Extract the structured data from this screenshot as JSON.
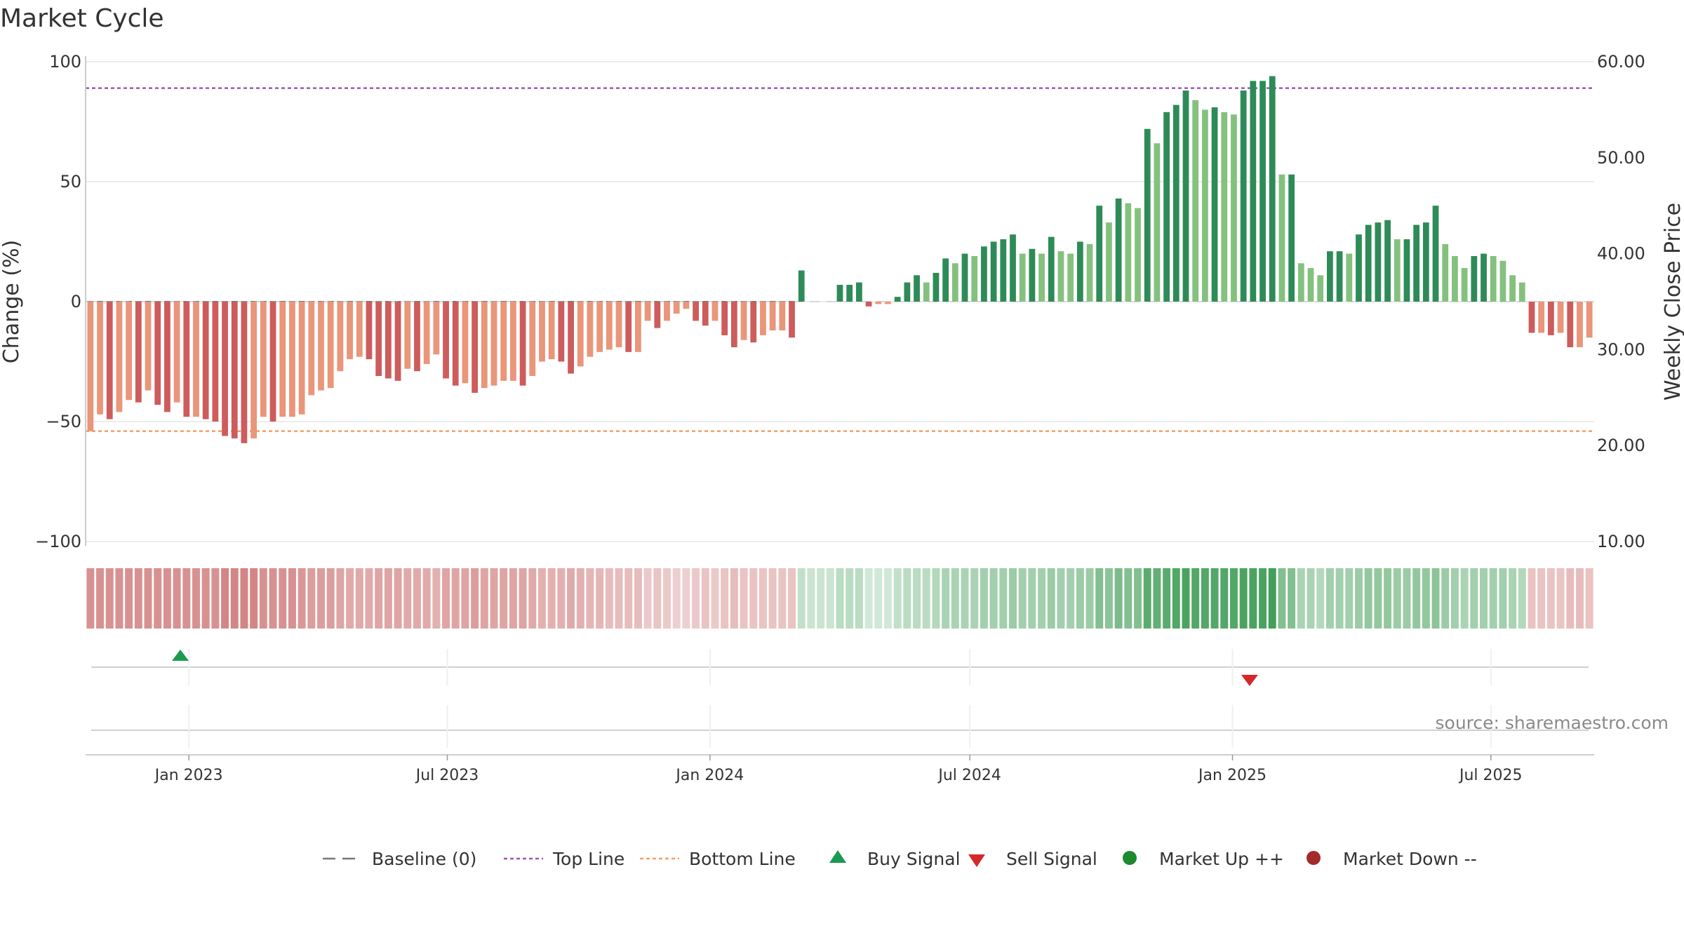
{
  "chart_data": {
    "type": "bar",
    "title": "Market Cycle",
    "ylabel": "Change (%)",
    "y2label": "Weekly Close Price",
    "ylim": [
      -100,
      100
    ],
    "y2lim": [
      10,
      60
    ],
    "yticks": [
      100,
      50,
      0,
      -50,
      -100
    ],
    "yticklabels": [
      "100",
      "50",
      "0",
      "−50",
      "−100"
    ],
    "y2ticks": [
      60,
      50,
      40,
      30,
      20,
      10
    ],
    "y2ticklabels": [
      "60.00",
      "50.00",
      "40.00",
      "30.00",
      "20.00",
      "10.00"
    ],
    "x_start": "2022-10-24",
    "x_end": "2025-09-08",
    "xticks": [
      "2023-01-01",
      "2023-07-01",
      "2024-01-01",
      "2024-07-01",
      "2025-01-01",
      "2025-07-01"
    ],
    "xticklabels": [
      "Jan 2023",
      "Jul 2023",
      "Jan 2024",
      "Jul 2024",
      "Jan 2025",
      "Jul 2025"
    ],
    "top_line": 89,
    "bottom_line": -54,
    "baseline": 0,
    "grid": true,
    "values": [
      -54,
      -47,
      -49,
      -46,
      -41,
      -42,
      -37,
      -43,
      -46,
      -42,
      -48,
      -48,
      -49,
      -50,
      -56,
      -57,
      -59,
      -57,
      -48,
      -50,
      -48,
      -48,
      -47,
      -39,
      -37,
      -36,
      -29,
      -24,
      -23,
      -24,
      -31,
      -32,
      -33,
      -28,
      -29,
      -26,
      -22,
      -32,
      -35,
      -34,
      -38,
      -36,
      -35,
      -33,
      -33,
      -35,
      -31,
      -25,
      -24,
      -25,
      -30,
      -27,
      -23,
      -21,
      -20,
      -19,
      -21,
      -21,
      -8,
      -11,
      -8,
      -5,
      -3,
      -8,
      -10,
      -8,
      -14,
      -19,
      -16,
      -17,
      -14,
      -12,
      -12,
      -15,
      13,
      0,
      0,
      0,
      7,
      7,
      8,
      -2,
      -1,
      -1,
      2,
      8,
      11,
      8,
      12,
      18,
      16,
      20,
      19,
      23,
      25,
      26,
      28,
      20,
      22,
      20,
      27,
      21,
      20,
      25,
      24,
      40,
      33,
      43,
      41,
      39,
      72,
      66,
      79,
      82,
      88,
      84,
      80,
      81,
      79,
      78,
      88,
      92,
      92,
      94,
      53,
      53,
      16,
      14,
      11,
      21,
      21,
      20,
      28,
      32,
      33,
      34,
      26,
      26,
      32,
      33,
      40,
      24,
      19,
      14,
      19,
      20,
      19,
      17,
      11,
      8,
      -13,
      -13,
      -14,
      -13,
      -19,
      -19,
      -15
    ],
    "price_weeks_start": 74,
    "price_weeks_end": 156,
    "heat_values": [
      -0.7,
      -0.7,
      -0.7,
      -0.7,
      -0.7,
      -0.7,
      -0.7,
      -0.7,
      -0.7,
      -0.7,
      -0.7,
      -0.7,
      -0.7,
      -0.7,
      -0.8,
      -0.8,
      -0.8,
      -0.8,
      -0.7,
      -0.7,
      -0.7,
      -0.7,
      -0.65,
      -0.6,
      -0.6,
      -0.6,
      -0.55,
      -0.5,
      -0.5,
      -0.5,
      -0.55,
      -0.55,
      -0.55,
      -0.5,
      -0.5,
      -0.5,
      -0.45,
      -0.55,
      -0.55,
      -0.55,
      -0.6,
      -0.55,
      -0.55,
      -0.55,
      -0.55,
      -0.55,
      -0.5,
      -0.45,
      -0.45,
      -0.45,
      -0.5,
      -0.45,
      -0.4,
      -0.4,
      -0.35,
      -0.35,
      -0.35,
      -0.35,
      -0.25,
      -0.3,
      -0.25,
      -0.2,
      -0.2,
      -0.25,
      -0.3,
      -0.25,
      -0.3,
      -0.35,
      -0.3,
      -0.3,
      -0.3,
      -0.3,
      -0.3,
      -0.3,
      0.2,
      0.15,
      0.15,
      0.15,
      0.25,
      0.25,
      0.25,
      0.1,
      0.1,
      0.1,
      0.2,
      0.25,
      0.25,
      0.25,
      0.3,
      0.35,
      0.35,
      0.35,
      0.35,
      0.4,
      0.4,
      0.4,
      0.45,
      0.4,
      0.4,
      0.4,
      0.45,
      0.4,
      0.4,
      0.45,
      0.45,
      0.6,
      0.55,
      0.65,
      0.6,
      0.6,
      0.85,
      0.8,
      0.85,
      0.9,
      0.95,
      0.9,
      0.9,
      0.9,
      0.9,
      0.9,
      0.95,
      0.95,
      0.95,
      1.0,
      0.6,
      0.6,
      0.35,
      0.35,
      0.3,
      0.4,
      0.4,
      0.4,
      0.45,
      0.5,
      0.5,
      0.5,
      0.45,
      0.45,
      0.5,
      0.5,
      0.55,
      0.45,
      0.4,
      0.35,
      0.4,
      0.4,
      0.4,
      0.4,
      0.35,
      0.3,
      -0.3,
      -0.3,
      -0.3,
      -0.3,
      -0.35,
      -0.35,
      -0.3
    ],
    "signals": [
      {
        "type": "buy",
        "date": "2022-12-26",
        "label": "Buy Signal"
      },
      {
        "type": "sell",
        "date": "2025-01-13",
        "label": "Sell Signal"
      }
    ],
    "legend_position": "bottom-center",
    "source": "source: sharemaestro.com",
    "legend": [
      {
        "label": "Baseline (0)",
        "kind": "dash-wide",
        "color": "#777777"
      },
      {
        "label": "Top Line",
        "kind": "dash-fine",
        "color": "#9b59b6"
      },
      {
        "label": "Bottom Line",
        "kind": "dash-fine",
        "color": "#f0a06a"
      },
      {
        "label": "Buy Signal",
        "kind": "triangle-up",
        "color": "#1a9a50"
      },
      {
        "label": "Sell Signal",
        "kind": "triangle-down",
        "color": "#d62728"
      },
      {
        "label": "Market Up ++",
        "kind": "circle",
        "color": "#1e8a2e"
      },
      {
        "label": "Market Down --",
        "kind": "circle",
        "color": "#a32a2a"
      }
    ],
    "colors": {
      "up_dark": "#2e8b57",
      "up_light": "#85c17e",
      "down_dark": "#cd5c5c",
      "down_light": "#e9967a",
      "top_line": "#9b59b6",
      "bottom_line": "#f0a06a",
      "baseline": "#777777",
      "grid": "#e6e6e6",
      "heat_pos": "#3a9a50",
      "heat_neg": "#c86464"
    }
  }
}
